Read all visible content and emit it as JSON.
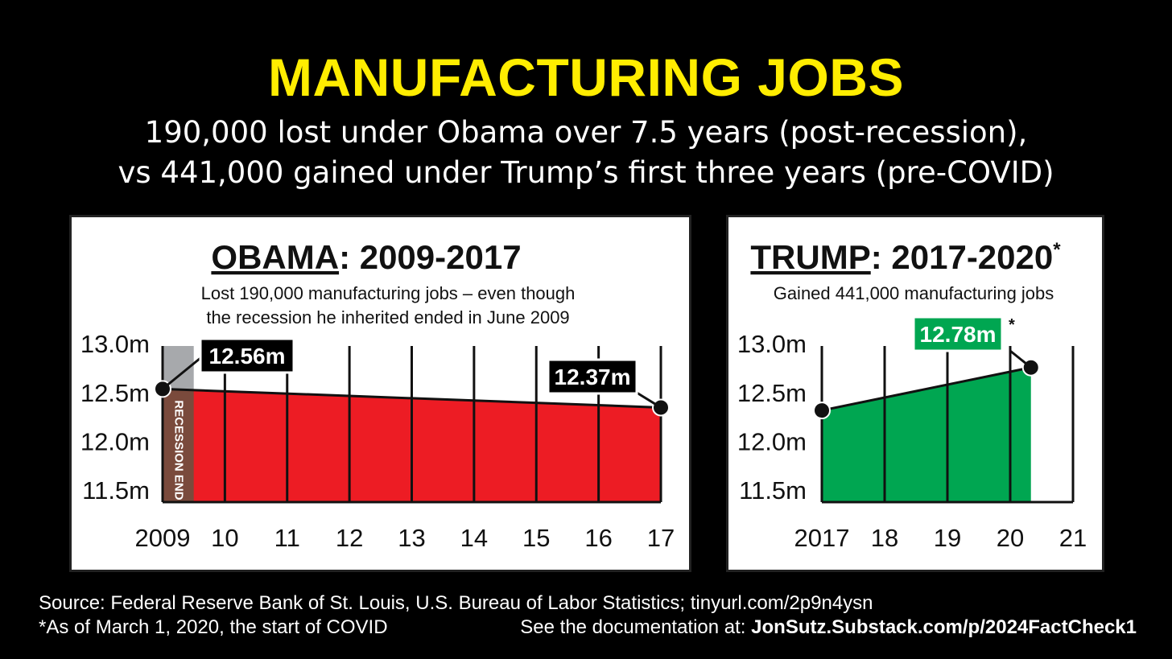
{
  "header": {
    "title": "MANUFACTURING JOBS",
    "subtitle_line1": "190,000 lost under Obama over 7.5 years (post-recession),",
    "subtitle_line2": "vs 441,000 gained under Trump’s first three years (pre-COVID)"
  },
  "footer": {
    "source": "Source: Federal Reserve Bank of St. Louis, U.S. Bureau of Labor Statistics; tinyurl.com/2p9n4ysn",
    "asof": "*As of March 1, 2020, the start of COVID",
    "doc_label": "See the documentation at: ",
    "doc_link": "JonSutz.Substack.com/p/2024FactCheck1"
  },
  "colors": {
    "title": "#ffed00",
    "obama_fill": "#ed1c24",
    "trump_fill": "#00a651",
    "recession_band": "#7a4a3c",
    "recession_top": "#a7a9ac"
  },
  "chart_data": [
    {
      "type": "area",
      "title_name": "OBAMA",
      "title_rest": ": 2009-2017",
      "subtitle_line1": "Lost 190,000 manufacturing jobs – even though",
      "subtitle_line2": "the recession he inherited ended in June 2009",
      "ylim": [
        11.5,
        13.0
      ],
      "xlim": [
        2009,
        2017
      ],
      "y_ticks": [
        13.0,
        12.5,
        12.0,
        11.5
      ],
      "y_tick_labels": [
        "13.0m",
        "12.5m",
        "12.0m",
        "11.5m"
      ],
      "x_ticks": [
        2009,
        2010,
        2011,
        2012,
        2013,
        2014,
        2015,
        2016,
        2017
      ],
      "x_tick_labels": [
        "2009",
        "10",
        "11",
        "12",
        "13",
        "14",
        "15",
        "16",
        "17"
      ],
      "series": [
        {
          "x": [
            2009.0,
            2017.0
          ],
          "y": [
            12.56,
            12.37
          ]
        }
      ],
      "recession_band": {
        "x": [
          2009.0,
          2009.5
        ],
        "label": "RECESSION ENDED"
      },
      "annotations": [
        {
          "x": 2009.0,
          "y": 12.56,
          "label": "12.56m"
        },
        {
          "x": 2017.0,
          "y": 12.37,
          "label": "12.37m"
        }
      ],
      "fill_color": "#ed1c24"
    },
    {
      "type": "area",
      "title_name": "TRUMP",
      "title_rest": ": 2017-2020",
      "title_mark": "*",
      "subtitle_line1": "Gained 441,000 manufacturing jobs",
      "ylim": [
        11.5,
        13.0
      ],
      "xlim": [
        2017,
        2021
      ],
      "y_ticks": [
        13.0,
        12.5,
        12.0,
        11.5
      ],
      "y_tick_labels": [
        "13.0m",
        "12.5m",
        "12.0m",
        "11.5m"
      ],
      "x_ticks": [
        2017,
        2018,
        2019,
        2020,
        2021
      ],
      "x_tick_labels": [
        "2017",
        "18",
        "19",
        "20",
        "21"
      ],
      "series": [
        {
          "x": [
            2017.0,
            2020.33
          ],
          "y": [
            12.34,
            12.78
          ]
        }
      ],
      "annotations": [
        {
          "x": 2020.33,
          "y": 12.78,
          "label": "12.78m",
          "mark": "*"
        }
      ],
      "fill_color": "#00a651"
    }
  ]
}
